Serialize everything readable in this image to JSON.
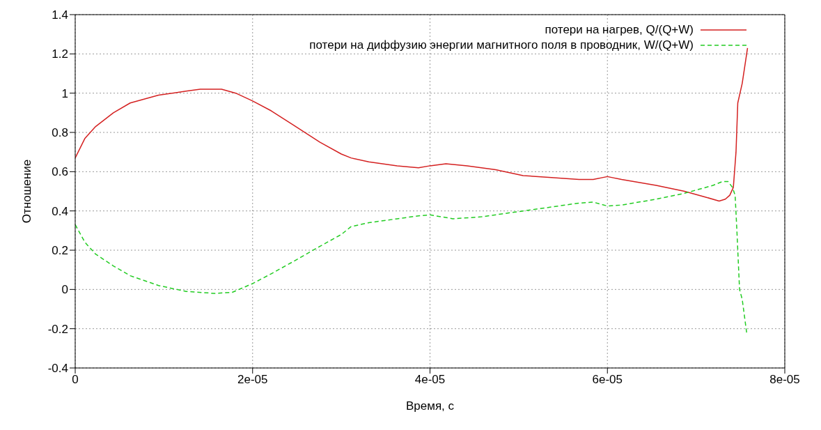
{
  "chart_data": {
    "type": "line",
    "xlabel": "Время, с",
    "ylabel": "Отношение",
    "xlim": [
      0,
      8e-05
    ],
    "xticks": [
      0,
      {
        "value": 2e-05,
        "label": "2e-05"
      },
      {
        "value": 4e-05,
        "label": "4e-05"
      },
      {
        "value": 6e-05,
        "label": "6e-05"
      },
      {
        "value": 8e-05,
        "label": "8e-05"
      }
    ],
    "ylim": [
      -0.4,
      1.4
    ],
    "yticks": [
      -0.4,
      -0.2,
      0,
      0.2,
      0.4,
      0.6,
      0.8,
      1,
      1.2,
      1.4
    ],
    "grid": true,
    "legend": "top right",
    "marker": "none",
    "series": [
      {
        "name": "потери на нагрев, Q/(Q+W)",
        "color": "#d42020",
        "line_style": "solid",
        "x": [
          0,
          1.1e-06,
          2.3e-06,
          4.3e-06,
          6.2e-06,
          9.4e-06,
          1.25e-05,
          1.41e-05,
          1.65e-05,
          1.81e-05,
          2e-05,
          2.21e-05,
          2.45e-05,
          2.76e-05,
          3e-05,
          3.11e-05,
          3.31e-05,
          3.63e-05,
          3.87e-05,
          4e-05,
          4.18e-05,
          4.42e-05,
          4.74e-05,
          5.05e-05,
          5.37e-05,
          5.68e-05,
          5.84e-05,
          6e-05,
          6.16e-05,
          6.55e-05,
          6.87e-05,
          7.11e-05,
          7.26e-05,
          7.33e-05,
          7.38e-05,
          7.42e-05,
          7.45e-05,
          7.47e-05,
          7.52e-05,
          7.57e-05,
          7.58e-05
        ],
        "values": [
          0.67,
          0.77,
          0.83,
          0.9,
          0.95,
          0.99,
          1.01,
          1.02,
          1.02,
          1.0,
          0.96,
          0.91,
          0.84,
          0.75,
          0.69,
          0.67,
          0.65,
          0.63,
          0.62,
          0.63,
          0.64,
          0.63,
          0.61,
          0.58,
          0.57,
          0.56,
          0.56,
          0.575,
          0.56,
          0.53,
          0.5,
          0.47,
          0.45,
          0.46,
          0.48,
          0.52,
          0.7,
          0.95,
          1.05,
          1.2,
          1.23
        ]
      },
      {
        "name": "потери на диффузию энергии магнитного поля в проводник, W/(Q+W)",
        "color": "#22cc22",
        "line_style": "dashed",
        "x": [
          0,
          1.1e-06,
          2.3e-06,
          4.3e-06,
          6.2e-06,
          9.4e-06,
          1.25e-05,
          1.57e-05,
          1.77e-05,
          2e-05,
          2.21e-05,
          2.45e-05,
          2.76e-05,
          3e-05,
          3.11e-05,
          3.31e-05,
          3.63e-05,
          3.87e-05,
          4e-05,
          4.26e-05,
          4.58e-05,
          5.05e-05,
          5.37e-05,
          5.68e-05,
          5.84e-05,
          6e-05,
          6.16e-05,
          6.55e-05,
          6.87e-05,
          7.19e-05,
          7.3e-05,
          7.36e-05,
          7.41e-05,
          7.44e-05,
          7.46e-05,
          7.49e-05,
          7.52e-05,
          7.57e-05
        ],
        "values": [
          0.33,
          0.24,
          0.18,
          0.12,
          0.07,
          0.02,
          -0.01,
          -0.02,
          -0.015,
          0.03,
          0.08,
          0.14,
          0.22,
          0.28,
          0.32,
          0.34,
          0.36,
          0.375,
          0.38,
          0.36,
          0.37,
          0.4,
          0.42,
          0.44,
          0.445,
          0.425,
          0.43,
          0.46,
          0.49,
          0.53,
          0.55,
          0.55,
          0.52,
          0.48,
          0.3,
          0.0,
          -0.05,
          -0.22
        ]
      }
    ]
  }
}
